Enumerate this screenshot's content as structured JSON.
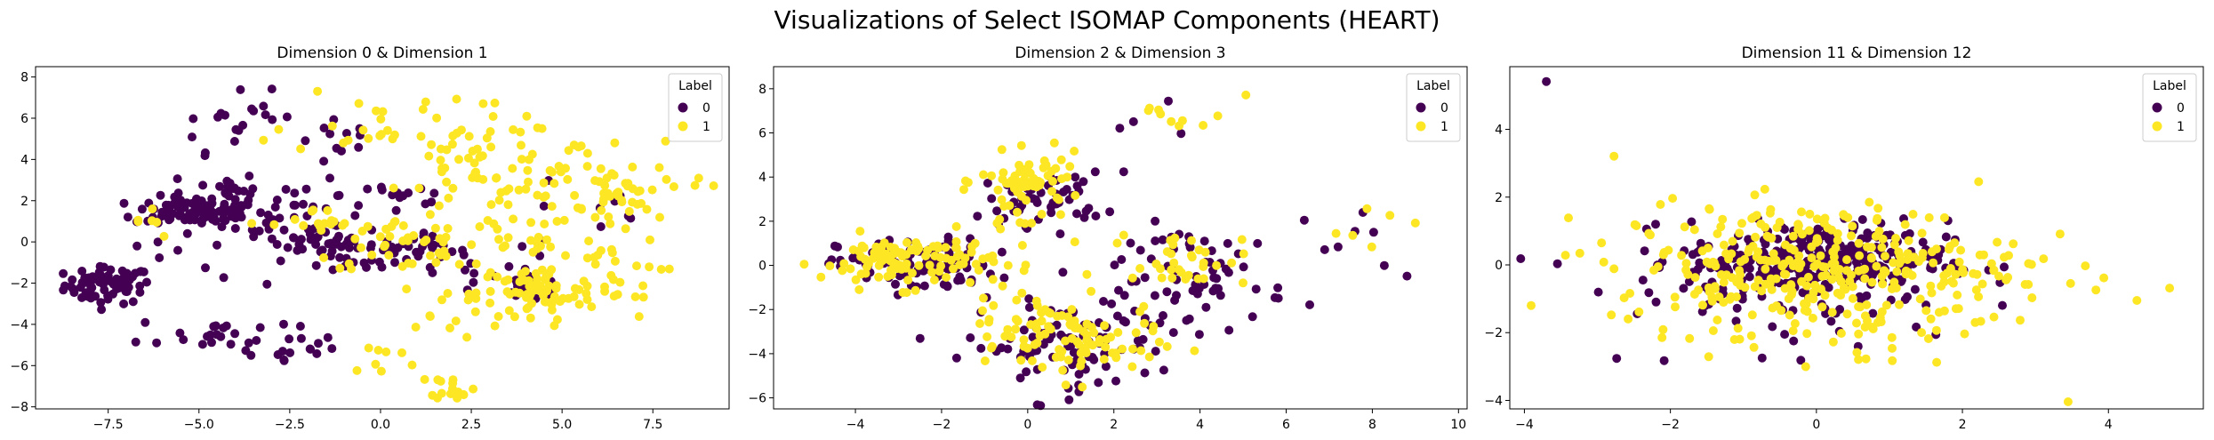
{
  "figure": {
    "suptitle": "Visualizations of Select ISOMAP Components (HEART)",
    "colors": {
      "label_0": "#440154",
      "label_1": "#fde725"
    }
  },
  "chart_data": [
    {
      "type": "scatter",
      "title": "Dimension 0 & Dimension 1",
      "xlim": [
        -9.5,
        9.6
      ],
      "ylim": [
        -8.1,
        8.5
      ],
      "xticks": [
        -7.5,
        -5.0,
        -2.5,
        0.0,
        2.5,
        5.0,
        7.5
      ],
      "yticks": [
        -8,
        -6,
        -4,
        -2,
        0,
        2,
        4,
        6,
        8
      ],
      "xtick_labels": [
        "−7.5",
        "−5.0",
        "−2.5",
        "0.0",
        "2.5",
        "5.0",
        "7.5"
      ],
      "ytick_labels": [
        "−8",
        "−6",
        "−4",
        "−2",
        "0",
        "2",
        "4",
        "6",
        "8"
      ],
      "legend": {
        "title": "Label",
        "entries": [
          "0",
          "1"
        ],
        "placement": "top-right"
      },
      "series": [
        {
          "label": "0",
          "clusters": [
            {
              "cx": -7.5,
              "cy": -2.1,
              "sx": 0.6,
              "sy": 0.45,
              "n": 70
            },
            {
              "cx": -5.0,
              "cy": 1.5,
              "sx": 0.9,
              "sy": 0.35,
              "n": 90
            },
            {
              "cx": -4.2,
              "cy": 2.6,
              "sx": 0.4,
              "sy": 0.4,
              "n": 20
            },
            {
              "cx": -3.8,
              "cy": 5.8,
              "sx": 1.0,
              "sy": 0.7,
              "n": 22
            },
            {
              "cx": -4.5,
              "cy": -4.5,
              "sx": 1.1,
              "sy": 0.5,
              "n": 25
            },
            {
              "cx": -2.2,
              "cy": 1.0,
              "sx": 0.9,
              "sy": 0.9,
              "n": 45
            },
            {
              "cx": -1.0,
              "cy": -0.3,
              "sx": 0.8,
              "sy": 0.4,
              "n": 35
            },
            {
              "cx": 1.0,
              "cy": -0.5,
              "sx": 0.7,
              "sy": 0.4,
              "n": 30
            },
            {
              "cx": -2.3,
              "cy": -5.2,
              "sx": 0.8,
              "sy": 0.5,
              "n": 12
            },
            {
              "cx": 0.5,
              "cy": 2.3,
              "sx": 0.8,
              "sy": 0.7,
              "n": 14
            },
            {
              "cx": 4.2,
              "cy": -2.3,
              "sx": 0.5,
              "sy": 0.3,
              "n": 18
            },
            {
              "cx": 2.5,
              "cy": -1.5,
              "sx": 1.2,
              "sy": 1.0,
              "n": 14
            },
            {
              "cx": -1.0,
              "cy": 4.8,
              "sx": 0.6,
              "sy": 0.6,
              "n": 8
            },
            {
              "cx": 6.0,
              "cy": 1.5,
              "sx": 1.0,
              "sy": 1.0,
              "n": 8
            },
            {
              "cx": -5.5,
              "cy": -0.5,
              "sx": 0.8,
              "sy": 0.8,
              "n": 12
            }
          ]
        },
        {
          "label": "1",
          "clusters": [
            {
              "cx": 2.8,
              "cy": 3.8,
              "sx": 1.1,
              "sy": 1.2,
              "n": 50
            },
            {
              "cx": 4.5,
              "cy": 1.6,
              "sx": 1.4,
              "sy": 1.3,
              "n": 55
            },
            {
              "cx": 6.5,
              "cy": 2.2,
              "sx": 0.5,
              "sy": 0.6,
              "n": 30
            },
            {
              "cx": 4.3,
              "cy": -2.5,
              "sx": 0.8,
              "sy": 0.7,
              "n": 70
            },
            {
              "cx": 1.0,
              "cy": 0.0,
              "sx": 1.5,
              "sy": 0.8,
              "n": 45
            },
            {
              "cx": -1.8,
              "cy": 0.8,
              "sx": 0.6,
              "sy": 0.4,
              "n": 15
            },
            {
              "cx": 0.0,
              "cy": 6.0,
              "sx": 1.3,
              "sy": 0.9,
              "n": 25
            },
            {
              "cx": 2.0,
              "cy": -7.0,
              "sx": 0.3,
              "sy": 0.3,
              "n": 15
            },
            {
              "cx": 0.0,
              "cy": -5.8,
              "sx": 0.6,
              "sy": 0.5,
              "n": 8
            },
            {
              "cx": 2.0,
              "cy": -3.5,
              "sx": 1.0,
              "sy": 1.0,
              "n": 15
            },
            {
              "cx": 6.3,
              "cy": -1.7,
              "sx": 0.7,
              "sy": 1.0,
              "n": 22
            },
            {
              "cx": 8.3,
              "cy": 3.0,
              "sx": 0.5,
              "sy": 0.4,
              "n": 5
            },
            {
              "cx": -6.5,
              "cy": 1.0,
              "sx": 0.5,
              "sy": 0.4,
              "n": 6
            },
            {
              "cx": 6.0,
              "cy": 4.0,
              "sx": 1.0,
              "sy": 0.8,
              "n": 12
            }
          ]
        }
      ]
    },
    {
      "type": "scatter",
      "title": "Dimension 2 & Dimension 3",
      "xlim": [
        -5.9,
        10.2
      ],
      "ylim": [
        -6.5,
        9.0
      ],
      "xticks": [
        -4,
        -2,
        0,
        2,
        4,
        6,
        8,
        10
      ],
      "yticks": [
        -6,
        -4,
        -2,
        0,
        2,
        4,
        6,
        8
      ],
      "xtick_labels": [
        "−4",
        "−2",
        "0",
        "2",
        "4",
        "6",
        "8",
        "10"
      ],
      "ytick_labels": [
        "−6",
        "−4",
        "−2",
        "0",
        "2",
        "4",
        "6",
        "8"
      ],
      "legend": {
        "title": "Label",
        "entries": [
          "0",
          "1"
        ],
        "placement": "top-right"
      },
      "series": [
        {
          "label": "0",
          "clusters": [
            {
              "cx": -2.6,
              "cy": 0.0,
              "sx": 0.9,
              "sy": 0.6,
              "n": 110
            },
            {
              "cx": 0.4,
              "cy": 3.0,
              "sx": 0.7,
              "sy": 0.6,
              "n": 50
            },
            {
              "cx": 0.8,
              "cy": -3.7,
              "sx": 1.1,
              "sy": 1.0,
              "n": 90
            },
            {
              "cx": 4.2,
              "cy": -0.5,
              "sx": 0.9,
              "sy": 1.2,
              "n": 55
            },
            {
              "cx": 2.5,
              "cy": -1.5,
              "sx": 0.8,
              "sy": 0.8,
              "n": 18
            },
            {
              "cx": 8.0,
              "cy": 1.0,
              "sx": 0.9,
              "sy": 0.9,
              "n": 8
            },
            {
              "cx": 3.5,
              "cy": 6.0,
              "sx": 1.0,
              "sy": 0.6,
              "n": 5
            }
          ]
        },
        {
          "label": "1",
          "clusters": [
            {
              "cx": -2.8,
              "cy": 0.2,
              "sx": 1.0,
              "sy": 0.6,
              "n": 110
            },
            {
              "cx": 0.1,
              "cy": 3.8,
              "sx": 0.6,
              "sy": 0.6,
              "n": 60
            },
            {
              "cx": 1.2,
              "cy": -3.5,
              "sx": 0.9,
              "sy": 0.9,
              "n": 80
            },
            {
              "cx": -0.3,
              "cy": -2.5,
              "sx": 0.6,
              "sy": 0.6,
              "n": 25
            },
            {
              "cx": 3.5,
              "cy": 0.3,
              "sx": 0.8,
              "sy": 0.6,
              "n": 35
            },
            {
              "cx": 3.8,
              "cy": 7.0,
              "sx": 0.6,
              "sy": 0.6,
              "n": 10
            },
            {
              "cx": 7.8,
              "cy": 2.5,
              "sx": 0.8,
              "sy": 1.2,
              "n": 6
            },
            {
              "cx": -0.2,
              "cy": 1.8,
              "sx": 0.6,
              "sy": 0.6,
              "n": 10
            }
          ]
        }
      ]
    },
    {
      "type": "scatter",
      "title": "Dimension 11 & Dimension 12",
      "xlim": [
        -4.2,
        5.3
      ],
      "ylim": [
        -4.25,
        5.85
      ],
      "xticks": [
        -4,
        -2,
        0,
        2,
        4
      ],
      "yticks": [
        -4,
        -2,
        0,
        2,
        4
      ],
      "xtick_labels": [
        "−4",
        "−2",
        "0",
        "2",
        "4"
      ],
      "ytick_labels": [
        "−4",
        "−2",
        "0",
        "2",
        "4"
      ],
      "legend": {
        "title": "Label",
        "entries": [
          "0",
          "1"
        ],
        "placement": "top-right"
      },
      "series": [
        {
          "label": "0",
          "clusters": [
            {
              "cx": 0.0,
              "cy": 0.1,
              "sx": 0.9,
              "sy": 0.6,
              "n": 320
            },
            {
              "cx": -0.5,
              "cy": -1.5,
              "sx": 1.2,
              "sy": 0.8,
              "n": 30
            },
            {
              "cx": -3.7,
              "cy": 5.4,
              "sx": 0.02,
              "sy": 0.02,
              "n": 1
            },
            {
              "cx": -3.55,
              "cy": 0.0,
              "sx": 0.02,
              "sy": 0.02,
              "n": 1
            }
          ]
        },
        {
          "label": "1",
          "clusters": [
            {
              "cx": 0.0,
              "cy": 0.0,
              "sx": 1.4,
              "sy": 0.9,
              "n": 330
            },
            {
              "cx": 0.5,
              "cy": -2.0,
              "sx": 1.3,
              "sy": 0.8,
              "n": 35
            },
            {
              "cx": 4.4,
              "cy": -0.9,
              "sx": 0.05,
              "sy": 0.05,
              "n": 1
            },
            {
              "cx": 4.8,
              "cy": -0.7,
              "sx": 0.05,
              "sy": 0.05,
              "n": 1
            }
          ]
        }
      ]
    }
  ]
}
